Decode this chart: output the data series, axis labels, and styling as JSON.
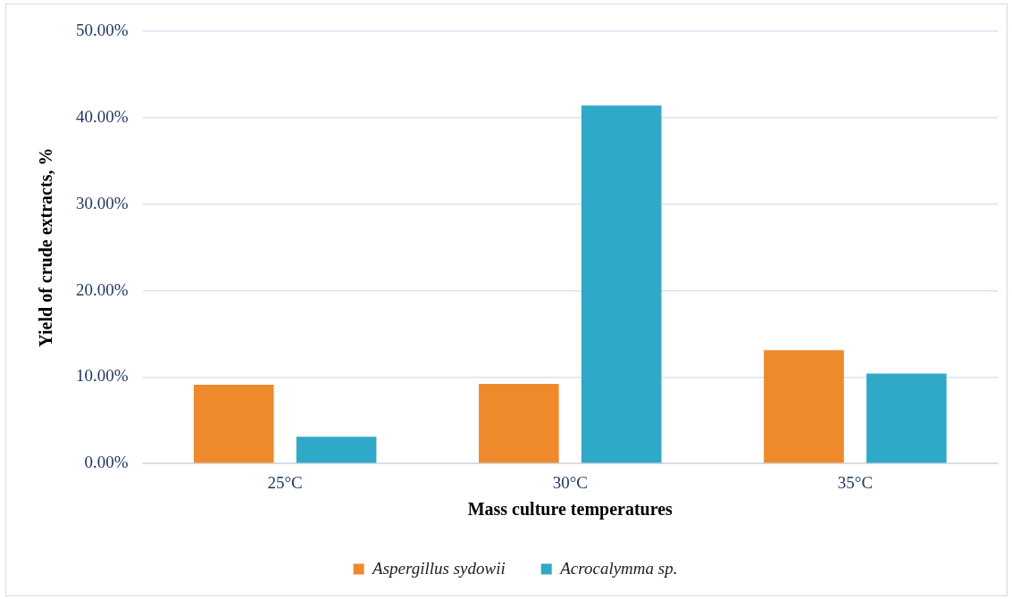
{
  "chart_data": {
    "type": "bar",
    "xlabel": "Mass culture temperatures",
    "ylabel": "Yield of crude extracts, %",
    "categories": [
      "25°C",
      "30°C",
      "35°C"
    ],
    "series": [
      {
        "name": "Aspergillus sydowii",
        "color": "#ee8a2c",
        "values": [
          9.1,
          9.2,
          13.1
        ]
      },
      {
        "name": "Acrocalymma sp.",
        "color": "#30a8c8",
        "values": [
          3.1,
          41.4,
          10.4
        ]
      }
    ],
    "ylim": [
      0,
      50
    ],
    "yticks": [
      {
        "value": 0,
        "label": "0.00%"
      },
      {
        "value": 10,
        "label": "10.00%"
      },
      {
        "value": 20,
        "label": "20.00%"
      },
      {
        "value": 30,
        "label": "30.00%"
      },
      {
        "value": 40,
        "label": "40.00%"
      },
      {
        "value": 50,
        "label": "50.00%"
      }
    ],
    "grid": "y",
    "legend": "bottom"
  }
}
